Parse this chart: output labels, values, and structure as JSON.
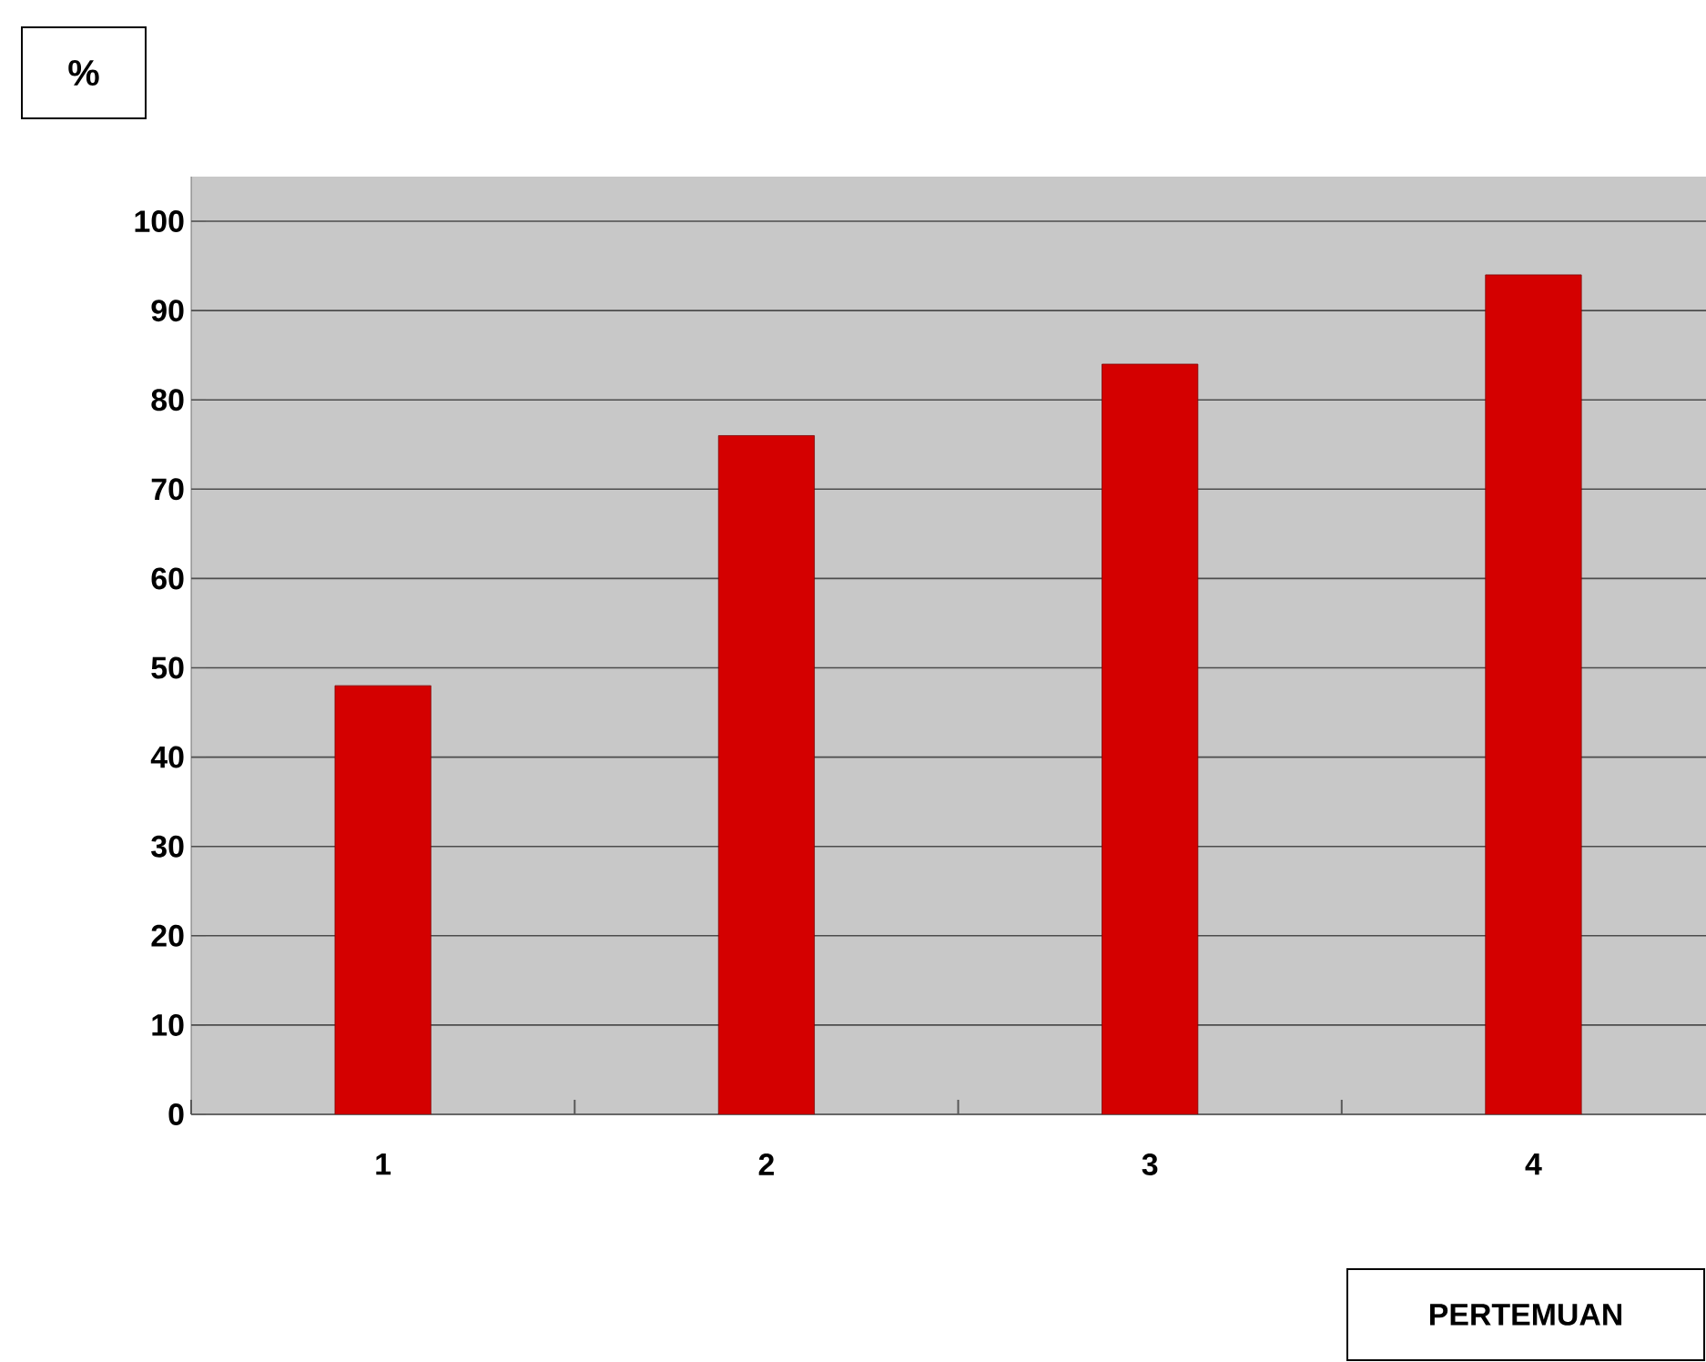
{
  "chart_data": {
    "type": "bar",
    "xlabel": "PERTEMUAN",
    "ylabel": "%",
    "categories": [
      "1",
      "2",
      "3",
      "4"
    ],
    "values": [
      48,
      76,
      84,
      94
    ],
    "color": "#d40000",
    "ylim": [
      0,
      105
    ],
    "yticks": [
      0,
      10,
      20,
      30,
      40,
      50,
      60,
      70,
      80,
      90,
      100
    ],
    "grid": "y"
  }
}
